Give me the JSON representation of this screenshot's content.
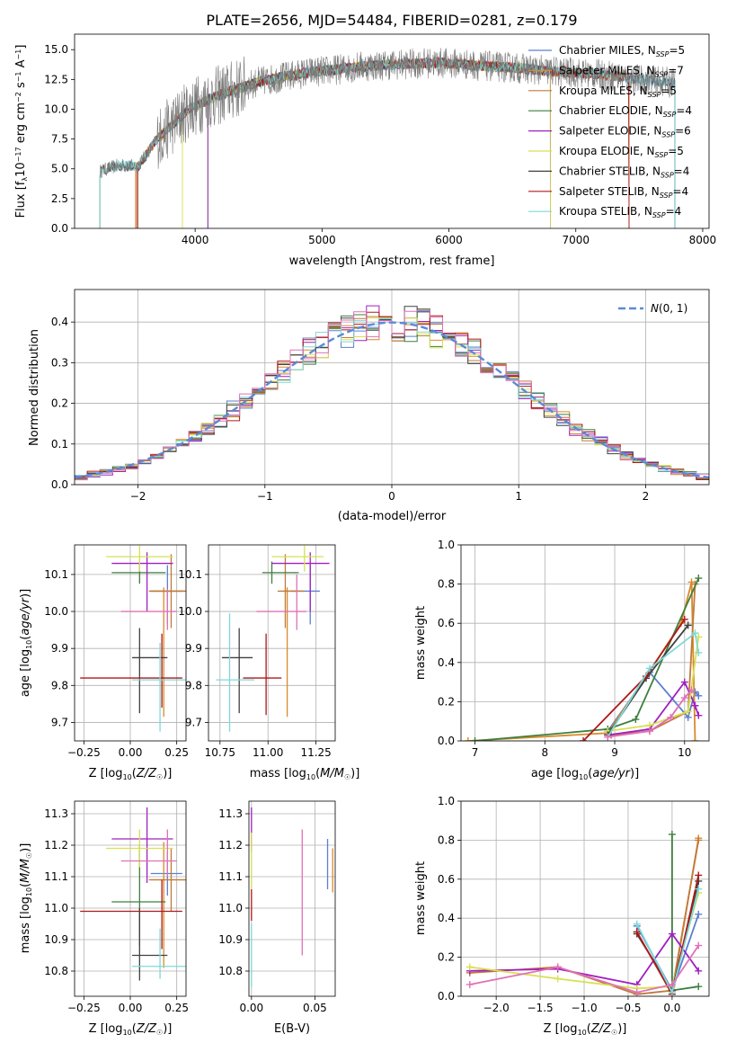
{
  "figure_title": "PLATE=2656, MJD=54484, FIBERID=0281, z=0.179",
  "colors": {
    "Chabrier MILES": "#5b7fd1",
    "Salpeter MILES": "#d98a2a",
    "Kroupa MILES": "#c07a3a",
    "Chabrier ELODIE": "#3f7f3f",
    "Salpeter ELODIE": "#a020c0",
    "Kroupa ELODIE": "#d8e050",
    "Chabrier STELIB": "#404040",
    "Salpeter STELIB": "#b01818",
    "Kroupa STELIB": "#7fd8d8",
    "extra_pink": "#e070b8",
    "normal_curve": "#5b8ad6"
  },
  "chart_data": [
    {
      "id": "spectrum",
      "type": "line",
      "title": "PLATE=2656, MJD=54484, FIBERID=0281, z=0.179",
      "xlabel": "wavelength [Angstrom, rest frame]",
      "ylabel": "Flux [f_λ 10^-17 erg cm^-2 s^-1 A^-1]",
      "xlim": [
        3050,
        8050
      ],
      "ylim": [
        0,
        16.3
      ],
      "xticks": [
        4000,
        5000,
        6000,
        7000,
        8000
      ],
      "yticks": [
        0.0,
        2.5,
        5.0,
        7.5,
        10.0,
        12.5,
        15.0
      ],
      "legend": "upper right",
      "series_names": [
        "Chabrier MILES, N_SSP=5",
        "Salpeter MILES, N_SSP=7",
        "Kroupa MILES, N_SSP=5",
        "Chabrier ELODIE, N_SSP=4",
        "Salpeter ELODIE, N_SSP=6",
        "Kroupa ELODIE, N_SSP=5",
        "Chabrier STELIB, N_SSP=4",
        "Salpeter STELIB, N_SSP=4",
        "Kroupa STELIB, N_SSP=4"
      ],
      "data_envelope": {
        "x": [
          3250,
          3400,
          3550,
          3700,
          3850,
          3950,
          4100,
          4300,
          4500,
          4700,
          4900,
          5100,
          5300,
          5500,
          5700,
          5900,
          6100,
          6300,
          6500,
          6700,
          6900,
          7100,
          7300,
          7500,
          7700,
          7780
        ],
        "y": [
          4.8,
          5.3,
          5.2,
          7.5,
          9.0,
          10.0,
          10.8,
          11.6,
          12.3,
          12.7,
          13.1,
          13.3,
          13.6,
          13.7,
          13.8,
          13.9,
          13.8,
          13.6,
          13.5,
          13.3,
          13.1,
          13.0,
          12.8,
          12.5,
          12.3,
          12.2
        ]
      }
    },
    {
      "id": "residuals",
      "type": "bar",
      "xlabel": "(data-model)/error",
      "ylabel": "Normed distribution",
      "xlim": [
        -2.5,
        2.5
      ],
      "ylim": [
        0,
        0.48
      ],
      "xticks": [
        -2,
        -1,
        0,
        1,
        2
      ],
      "yticks": [
        0.0,
        0.1,
        0.2,
        0.3,
        0.4
      ],
      "grid": true,
      "legend": "upper right",
      "legend_label": "N(0,1)",
      "bin_width": 0.1
    },
    {
      "id": "age_vs_Z",
      "type": "scatter",
      "xlabel": "Z [log10(Z/Z☉)]",
      "ylabel": "age [log10(age/yr)]",
      "xlim": [
        -0.3,
        0.3
      ],
      "ylim": [
        9.65,
        10.18
      ],
      "xticks": [
        -0.25,
        0.0,
        0.25
      ],
      "yticks": [
        9.7,
        9.8,
        9.9,
        10.0,
        10.1
      ],
      "grid": true,
      "points": [
        {
          "series": "Chabrier MILES",
          "x": 0.2,
          "xerr": [
            0.09,
            0.08
          ],
          "y": 10.055,
          "yerr": [
            0.09,
            0.07
          ]
        },
        {
          "series": "Salpeter MILES",
          "x": 0.18,
          "xerr": [
            0.07,
            0.12
          ],
          "y": 10.055,
          "yerr": [
            0.34,
            0.01
          ]
        },
        {
          "series": "Kroupa MILES",
          "x": 0.22,
          "xerr": [
            0.12,
            0.08
          ],
          "y": 10.055,
          "yerr": [
            0.1,
            0.1
          ]
        },
        {
          "series": "Chabrier ELODIE",
          "x": 0.05,
          "xerr": [
            0.15,
            0.14
          ],
          "y": 10.105,
          "yerr": [
            0.03,
            0.03
          ]
        },
        {
          "series": "Salpeter ELODIE",
          "x": 0.09,
          "xerr": [
            0.19,
            0.14
          ],
          "y": 10.13,
          "yerr": [
            0.13,
            0.03
          ]
        },
        {
          "series": "Kroupa ELODIE",
          "x": 0.05,
          "xerr": [
            0.18,
            0.18
          ],
          "y": 10.148,
          "yerr": [
            0.04,
            0.03
          ]
        },
        {
          "series": "Chabrier STELIB",
          "x": 0.05,
          "xerr": [
            0.04,
            0.15
          ],
          "y": 9.875,
          "yerr": [
            0.15,
            0.08
          ]
        },
        {
          "series": "Salpeter STELIB",
          "x": 0.17,
          "xerr": [
            0.44,
            0.11
          ],
          "y": 9.82,
          "yerr": [
            0.08,
            0.12
          ]
        },
        {
          "series": "Kroupa STELIB",
          "x": 0.16,
          "xerr": [
            0.15,
            0.16
          ],
          "y": 9.815,
          "yerr": [
            0.14,
            0.1
          ]
        },
        {
          "series": "extra_pink",
          "x": 0.2,
          "xerr": [
            0.25,
            0.05
          ],
          "y": 10.0,
          "yerr": [
            0.05,
            0.06
          ]
        }
      ]
    },
    {
      "id": "age_vs_mass",
      "type": "scatter",
      "xlabel": "mass [log10(M/M☉)]",
      "xlim": [
        10.69,
        11.35
      ],
      "ylim": [
        9.65,
        10.18
      ],
      "xticks": [
        10.75,
        11.0,
        11.25
      ],
      "yticks": [
        9.7,
        9.8,
        9.9,
        10.0,
        10.1
      ],
      "grid": true,
      "points": [
        {
          "series": "Chabrier MILES",
          "x": 11.22,
          "xerr": [
            0.1,
            0.05
          ],
          "y": 10.055,
          "yerr": [
            0.09,
            0.07
          ]
        },
        {
          "series": "Salpeter MILES",
          "x": 11.1,
          "xerr": [
            0.02,
            0.05
          ],
          "y": 10.055,
          "yerr": [
            0.34,
            0.01
          ]
        },
        {
          "series": "Kroupa MILES",
          "x": 11.09,
          "xerr": [
            0.04,
            0.1
          ],
          "y": 10.055,
          "yerr": [
            0.1,
            0.1
          ]
        },
        {
          "series": "Chabrier ELODIE",
          "x": 11.02,
          "xerr": [
            0.05,
            0.14
          ],
          "y": 10.105,
          "yerr": [
            0.03,
            0.03
          ]
        },
        {
          "series": "Salpeter ELODIE",
          "x": 11.22,
          "xerr": [
            0.2,
            0.1
          ],
          "y": 10.13,
          "yerr": [
            0.13,
            0.03
          ]
        },
        {
          "series": "Kroupa ELODIE",
          "x": 11.19,
          "xerr": [
            0.17,
            0.1
          ],
          "y": 10.148,
          "yerr": [
            0.04,
            0.03
          ]
        },
        {
          "series": "Chabrier STELIB",
          "x": 10.85,
          "xerr": [
            0.09,
            0.07
          ],
          "y": 9.875,
          "yerr": [
            0.15,
            0.08
          ]
        },
        {
          "series": "Salpeter STELIB",
          "x": 10.99,
          "xerr": [
            0.12,
            0.08
          ],
          "y": 9.82,
          "yerr": [
            0.1,
            0.12
          ]
        },
        {
          "series": "Kroupa STELIB",
          "x": 10.8,
          "xerr": [
            0.07,
            0.13
          ],
          "y": 9.815,
          "yerr": [
            0.14,
            0.18
          ]
        },
        {
          "series": "extra_pink",
          "x": 11.15,
          "xerr": [
            0.21,
            0.05
          ],
          "y": 10.0,
          "yerr": [
            0.05,
            0.1
          ]
        }
      ]
    },
    {
      "id": "weight_vs_age",
      "type": "line",
      "xlabel": "age [log10(age/yr)]",
      "ylabel": "mass weight",
      "xlim": [
        6.8,
        10.35
      ],
      "ylim": [
        0,
        1.0
      ],
      "xticks": [
        7,
        8,
        9,
        10
      ],
      "yticks": [
        0.0,
        0.2,
        0.4,
        0.6,
        0.8,
        1.0
      ],
      "grid": true,
      "series": [
        {
          "name": "Chabrier MILES",
          "x": [
            8.9,
            9.5,
            10.05,
            10.15,
            10.2
          ],
          "y": [
            0.05,
            0.35,
            0.12,
            0.25,
            0.23
          ]
        },
        {
          "name": "Salpeter MILES",
          "x": [
            6.9,
            8.9,
            9.45,
            9.95,
            10.1,
            10.15
          ],
          "y": [
            0.0,
            0.04,
            0.33,
            0.6,
            0.81,
            0.0
          ]
        },
        {
          "name": "Kroupa MILES",
          "x": [
            8.95,
            9.5,
            10.05,
            10.15
          ],
          "y": [
            0.03,
            0.05,
            0.15,
            0.8
          ]
        },
        {
          "name": "Chabrier ELODIE",
          "x": [
            7.0,
            8.9,
            9.3,
            10.2
          ],
          "y": [
            0.0,
            0.06,
            0.11,
            0.83
          ]
        },
        {
          "name": "Salpeter ELODIE",
          "x": [
            8.9,
            9.5,
            10.0,
            10.15,
            10.2
          ],
          "y": [
            0.03,
            0.06,
            0.3,
            0.18,
            0.13
          ]
        },
        {
          "name": "Kroupa ELODIE",
          "x": [
            8.9,
            9.5,
            10.05,
            10.2
          ],
          "y": [
            0.05,
            0.08,
            0.15,
            0.53
          ]
        },
        {
          "name": "Chabrier STELIB",
          "x": [
            8.9,
            9.45,
            10.05
          ],
          "y": [
            0.03,
            0.32,
            0.59
          ]
        },
        {
          "name": "Salpeter STELIB",
          "x": [
            8.55,
            9.45,
            10.0
          ],
          "y": [
            0.0,
            0.33,
            0.62
          ]
        },
        {
          "name": "Kroupa STELIB",
          "x": [
            8.9,
            9.5,
            10.15,
            10.2
          ],
          "y": [
            0.02,
            0.37,
            0.55,
            0.45
          ]
        },
        {
          "name": "extra_pink",
          "x": [
            8.9,
            9.5,
            9.8,
            10.0,
            10.1
          ],
          "y": [
            0.02,
            0.05,
            0.12,
            0.22,
            0.26
          ]
        }
      ]
    },
    {
      "id": "mass_vs_Z",
      "type": "scatter",
      "xlabel": "Z [log10(Z/Z☉)]",
      "ylabel": "mass [log10(M/M☉)]",
      "xlim": [
        -0.3,
        0.3
      ],
      "ylim": [
        10.72,
        11.34
      ],
      "xticks": [
        -0.25,
        0.0,
        0.25
      ],
      "yticks": [
        10.8,
        10.9,
        11.0,
        11.1,
        11.2,
        11.3
      ],
      "grid": true,
      "points": [
        {
          "series": "Chabrier MILES",
          "x": 0.2,
          "xerr": [
            0.09,
            0.08
          ],
          "y": 11.11,
          "yerr": [
            0.07,
            0.07
          ]
        },
        {
          "series": "Salpeter MILES",
          "x": 0.18,
          "xerr": [
            0.07,
            0.12
          ],
          "y": 11.09,
          "yerr": [
            0.28,
            0.12
          ]
        },
        {
          "series": "Kroupa MILES",
          "x": 0.22,
          "xerr": [
            0.12,
            0.08
          ],
          "y": 11.09,
          "yerr": [
            0.1,
            0.1
          ]
        },
        {
          "series": "Chabrier ELODIE",
          "x": 0.05,
          "xerr": [
            0.15,
            0.14
          ],
          "y": 11.02,
          "yerr": [
            0.14,
            0.18
          ]
        },
        {
          "series": "Salpeter ELODIE",
          "x": 0.09,
          "xerr": [
            0.19,
            0.14
          ],
          "y": 11.22,
          "yerr": [
            0.14,
            0.1
          ]
        },
        {
          "series": "Kroupa ELODIE",
          "x": 0.05,
          "xerr": [
            0.18,
            0.18
          ],
          "y": 11.19,
          "yerr": [
            0.06,
            0.06
          ]
        },
        {
          "series": "Chabrier STELIB",
          "x": 0.05,
          "xerr": [
            0.04,
            0.15
          ],
          "y": 10.85,
          "yerr": [
            0.08,
            0.15
          ]
        },
        {
          "series": "Salpeter STELIB",
          "x": 0.17,
          "xerr": [
            0.44,
            0.11
          ],
          "y": 10.99,
          "yerr": [
            0.12,
            0.1
          ]
        },
        {
          "series": "Kroupa STELIB",
          "x": 0.16,
          "xerr": [
            0.15,
            0.16
          ],
          "y": 10.815,
          "yerr": [
            0.04,
            0.12
          ]
        },
        {
          "series": "extra_pink",
          "x": 0.2,
          "xerr": [
            0.25,
            0.05
          ],
          "y": 11.15,
          "yerr": [
            0.05,
            0.1
          ]
        }
      ]
    },
    {
      "id": "mass_vs_EBV",
      "type": "scatter",
      "xlabel": "E(B-V)",
      "xlim": [
        -0.002,
        0.066
      ],
      "ylim": [
        10.72,
        11.34
      ],
      "xticks": [
        0.0,
        0.05
      ],
      "xticklabels": [
        "0.00",
        "0.05"
      ],
      "yticks": [
        10.8,
        10.9,
        11.0,
        11.1,
        11.2,
        11.3
      ],
      "grid": true,
      "points": [
        {
          "series": "Chabrier MILES",
          "x": 0.06,
          "y": 11.14,
          "yerr": [
            0.08,
            0.08
          ]
        },
        {
          "series": "Salpeter MILES",
          "x": 0.064,
          "y": 11.12,
          "yerr": [
            0.07,
            0.07
          ]
        },
        {
          "series": "Salpeter ELODIE",
          "x": 0.0,
          "y": 11.25,
          "yerr": [
            0.07,
            0.07
          ]
        },
        {
          "series": "Kroupa ELODIE",
          "x": 0.0,
          "y": 11.15,
          "yerr": [
            0.09,
            0.09
          ]
        },
        {
          "series": "Salpeter STELIB",
          "x": 0.0,
          "y": 11.01,
          "yerr": [
            0.05,
            0.05
          ]
        },
        {
          "series": "Kroupa STELIB",
          "x": 0.0,
          "y": 10.85,
          "yerr": [
            0.1,
            0.1
          ]
        },
        {
          "series": "extra_pink",
          "x": 0.04,
          "y": 11.05,
          "yerr": [
            0.2,
            0.2
          ]
        }
      ]
    },
    {
      "id": "weight_vs_Z",
      "type": "line",
      "xlabel": "Z [log10(Z/Z☉)]",
      "ylabel": "mass weight",
      "xlim": [
        -2.4,
        0.42
      ],
      "ylim": [
        0,
        1.0
      ],
      "xticks": [
        -2.0,
        -1.5,
        -1.0,
        -0.5,
        0.0
      ],
      "yticks": [
        0.0,
        0.2,
        0.4,
        0.6,
        0.8,
        1.0
      ],
      "grid": true,
      "series": [
        {
          "name": "Chabrier MILES",
          "x": [
            -0.4,
            0.0,
            0.3
          ],
          "y": [
            0.36,
            0.03,
            0.42
          ]
        },
        {
          "name": "Salpeter MILES",
          "x": [
            -0.4,
            0.0,
            0.3
          ],
          "y": [
            0.33,
            0.01,
            0.81
          ]
        },
        {
          "name": "Kroupa MILES",
          "x": [
            -2.3,
            -1.3,
            -0.4,
            0.0,
            0.3
          ],
          "y": [
            0.12,
            0.15,
            0.01,
            0.03,
            0.8
          ]
        },
        {
          "name": "Chabrier ELODIE",
          "x": [
            0.0,
            0.0,
            0.3
          ],
          "y": [
            0.83,
            0.03,
            0.05
          ]
        },
        {
          "name": "Salpeter ELODIE",
          "x": [
            -2.3,
            -1.3,
            -0.4,
            0.0,
            0.3
          ],
          "y": [
            0.13,
            0.14,
            0.06,
            0.32,
            0.13
          ]
        },
        {
          "name": "Kroupa ELODIE",
          "x": [
            -2.3,
            -1.3,
            -0.4,
            0.0,
            0.3
          ],
          "y": [
            0.15,
            0.09,
            0.04,
            0.05,
            0.53
          ]
        },
        {
          "name": "Chabrier STELIB",
          "x": [
            -0.4,
            0.0,
            0.3
          ],
          "y": [
            0.32,
            0.03,
            0.59
          ]
        },
        {
          "name": "Salpeter STELIB",
          "x": [
            -0.4,
            0.0,
            0.3
          ],
          "y": [
            0.33,
            0.01,
            0.62
          ]
        },
        {
          "name": "Kroupa STELIB",
          "x": [
            -0.4,
            0.0,
            0.3
          ],
          "y": [
            0.37,
            0.02,
            0.55
          ]
        },
        {
          "name": "extra_pink",
          "x": [
            -2.3,
            -1.3,
            -0.4,
            0.0,
            0.3
          ],
          "y": [
            0.06,
            0.15,
            0.02,
            0.06,
            0.26
          ]
        }
      ]
    }
  ]
}
